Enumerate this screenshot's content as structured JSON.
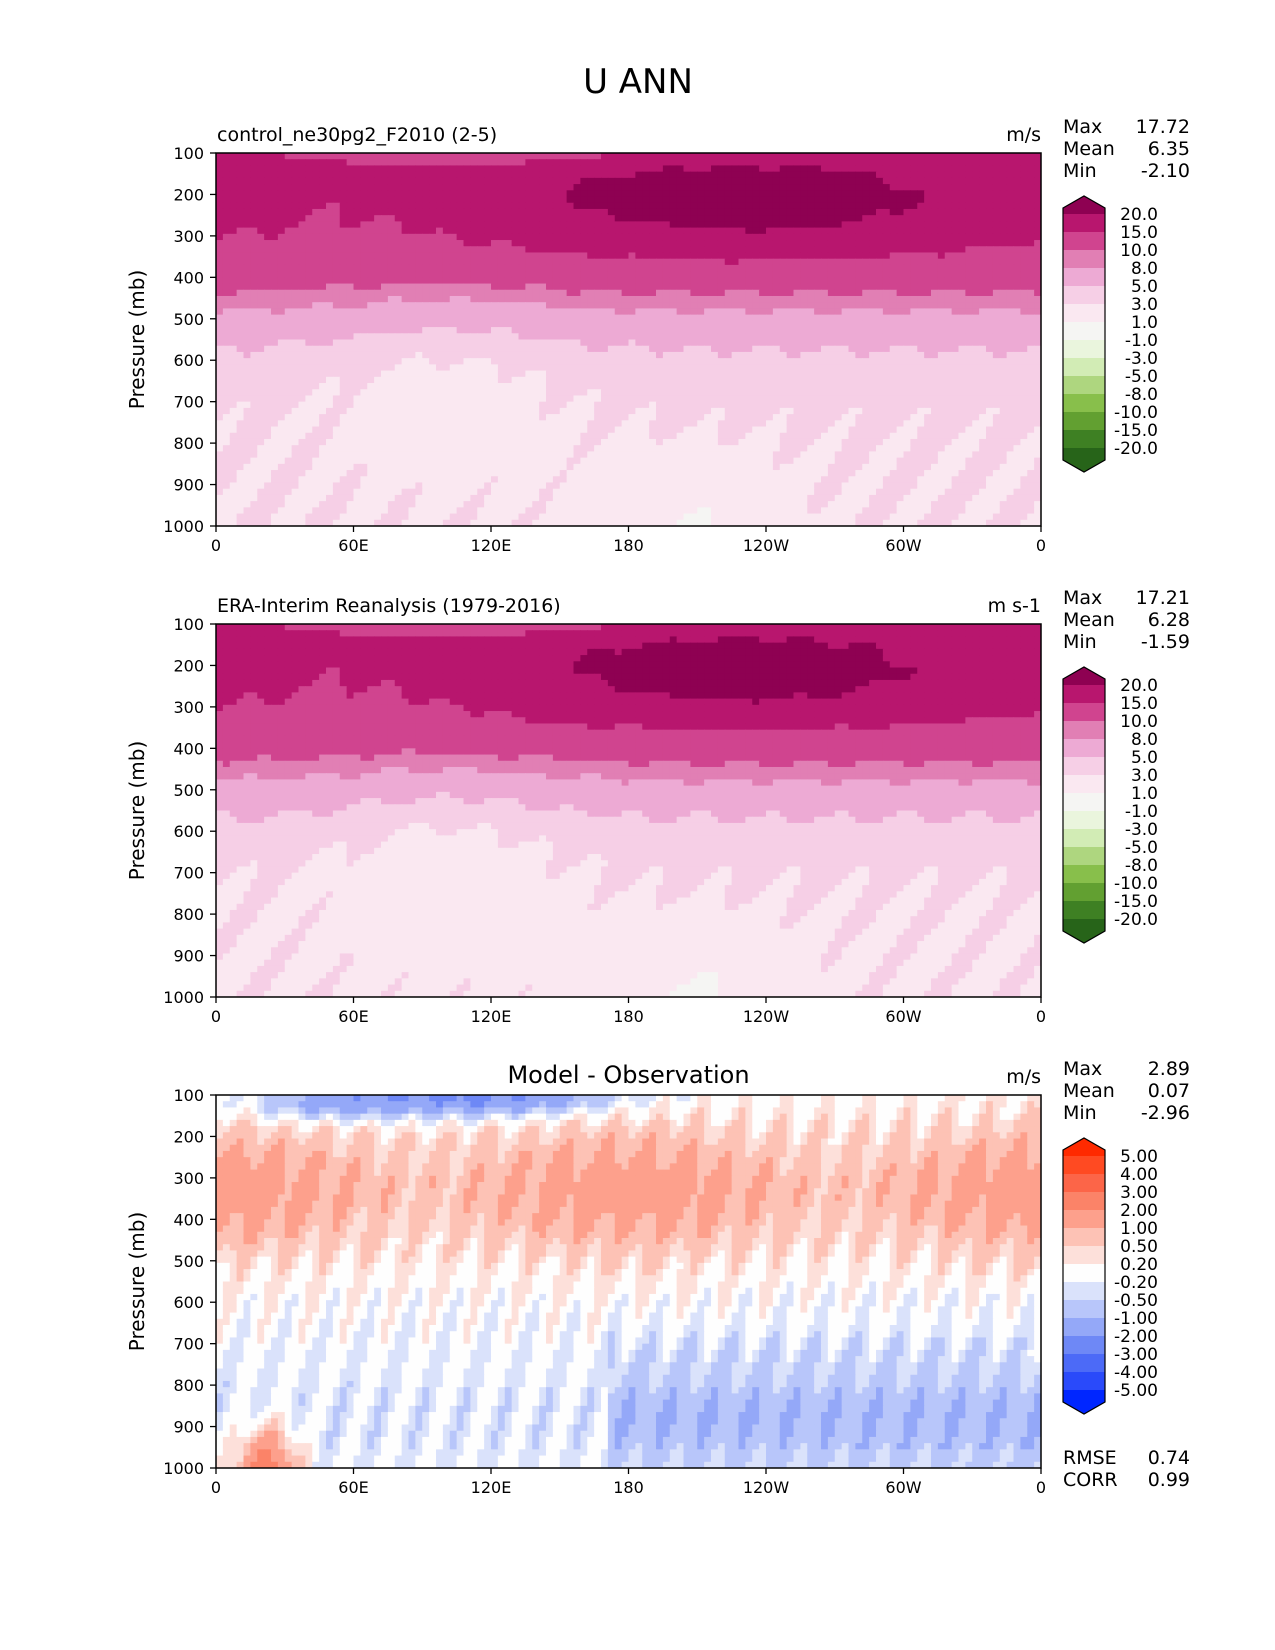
{
  "chart_data": {
    "type": "heatmap",
    "title": "U ANN",
    "x_ticks": [
      "0",
      "60E",
      "120E",
      "180",
      "120W",
      "60W",
      "0"
    ],
    "y_ticks": [
      "100",
      "200",
      "300",
      "400",
      "500",
      "600",
      "700",
      "800",
      "900",
      "1000"
    ],
    "ylabel": "Pressure (mb)",
    "xlim": [
      0,
      360
    ],
    "ylim": [
      1000,
      100
    ],
    "panels": [
      {
        "id": "test",
        "title_left": "control_ne30pg2_F2010 (2-5)",
        "title_center": "",
        "units": "m/s",
        "stats": [
          {
            "label": "Max",
            "value": "17.72"
          },
          {
            "label": "Mean",
            "value": "6.35"
          },
          {
            "label": "Min",
            "value": "-2.10"
          }
        ],
        "colorbar": {
          "levels": [
            "20.0",
            "15.0",
            "10.0",
            "8.0",
            "5.0",
            "3.0",
            "1.0",
            "-1.0",
            "-3.0",
            "-5.0",
            "-8.0",
            "-10.0",
            "-15.0",
            "-20.0"
          ],
          "colors": [
            "#8e0152",
            "#b8166e",
            "#d0448f",
            "#e17fb4",
            "#edaad4",
            "#f6cfe6",
            "#fae8f1",
            "#f5f5f3",
            "#eaf5dd",
            "#d2ecb5",
            "#aed67f",
            "#88bf4b",
            "#62a031",
            "#3e8023",
            "#276419"
          ]
        },
        "bands": [
          {
            "level": "20.0",
            "p_top": 100,
            "p_bot": 100
          },
          {
            "level": "15.0",
            "p_top": 150,
            "p_bot": 270
          },
          {
            "level": "10.0",
            "p_top": 100,
            "p_bot": 395
          },
          {
            "level": "8.0",
            "p_top": 395,
            "p_bot": 490
          },
          {
            "level": "5.0",
            "p_top": 490,
            "p_bot": 620
          },
          {
            "level": "3.0",
            "p_top": 620,
            "p_bot": 760
          },
          {
            "level": "1.0",
            "p_top": 760,
            "p_bot": 900
          },
          {
            "level": "-1.0",
            "p_top": 900,
            "p_bot": 1000
          }
        ]
      },
      {
        "id": "reference",
        "title_left": "ERA-Interim Reanalysis (1979-2016)",
        "title_center": "",
        "units": "m s-1",
        "stats": [
          {
            "label": "Max",
            "value": "17.21"
          },
          {
            "label": "Mean",
            "value": "6.28"
          },
          {
            "label": "Min",
            "value": "-1.59"
          }
        ],
        "colorbar": {
          "levels": [
            "20.0",
            "15.0",
            "10.0",
            "8.0",
            "5.0",
            "3.0",
            "1.0",
            "-1.0",
            "-3.0",
            "-5.0",
            "-8.0",
            "-10.0",
            "-15.0",
            "-20.0"
          ],
          "colors": [
            "#8e0152",
            "#b8166e",
            "#d0448f",
            "#e17fb4",
            "#edaad4",
            "#f6cfe6",
            "#fae8f1",
            "#f5f5f3",
            "#eaf5dd",
            "#d2ecb5",
            "#aed67f",
            "#88bf4b",
            "#62a031",
            "#3e8023",
            "#276419"
          ]
        }
      },
      {
        "id": "difference",
        "title_left": "",
        "title_center": "Model - Observation",
        "units": "m/s",
        "stats": [
          {
            "label": "Max",
            "value": "2.89"
          },
          {
            "label": "Mean",
            "value": "0.07"
          },
          {
            "label": "Min",
            "value": "-2.96"
          }
        ],
        "extra_stats": [
          {
            "label": "RMSE",
            "value": "0.74"
          },
          {
            "label": "CORR",
            "value": "0.99"
          }
        ],
        "colorbar": {
          "levels": [
            "5.00",
            "4.00",
            "3.00",
            "2.00",
            "1.00",
            "0.50",
            "0.20",
            "-0.20",
            "-0.50",
            "-1.00",
            "-2.00",
            "-3.00",
            "-4.00",
            "-5.00"
          ],
          "colors": [
            "#ff2a00",
            "#ff4a22",
            "#fc6548",
            "#fb8368",
            "#fda08c",
            "#fdc2b5",
            "#fde0da",
            "#fefefe",
            "#dae2fb",
            "#b8c6fa",
            "#94a8f8",
            "#6e88f6",
            "#4c6af7",
            "#2a4afa",
            "#0026ff"
          ]
        }
      }
    ]
  }
}
